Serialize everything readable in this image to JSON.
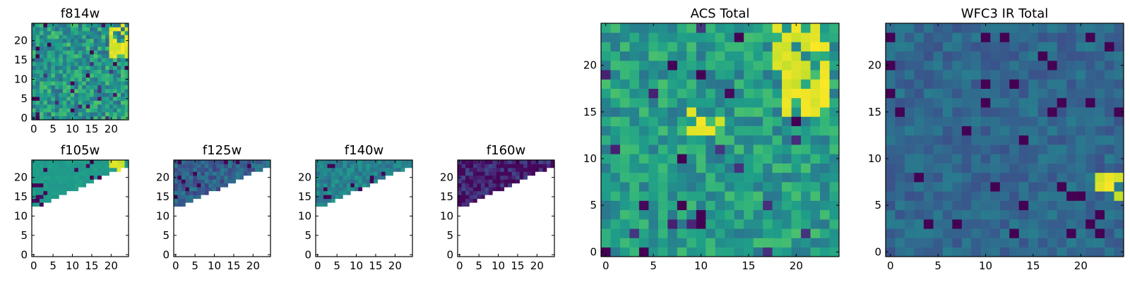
{
  "chart_data": [
    {
      "type": "heatmap",
      "title": "f814w",
      "xticks": [
        0,
        5,
        10,
        15,
        20
      ],
      "yticks": [
        0,
        5,
        10,
        15,
        20
      ],
      "xlim": [
        -0.5,
        24.5
      ],
      "ylim": [
        -0.5,
        24.5
      ],
      "colormap": "viridis",
      "grid": false,
      "coverage": "full"
    },
    {
      "type": "heatmap",
      "title": "f105w",
      "xticks": [
        0,
        5,
        10,
        15,
        20
      ],
      "yticks": [
        0,
        5,
        10,
        15,
        20
      ],
      "xlim": [
        -0.5,
        24.5
      ],
      "ylim": [
        -0.5,
        24.5
      ],
      "colormap": "viridis",
      "grid": false,
      "coverage": "upper-left wedge, rows 13-24"
    },
    {
      "type": "heatmap",
      "title": "f125w",
      "xticks": [
        0,
        5,
        10,
        15,
        20
      ],
      "yticks": [
        0,
        5,
        10,
        15,
        20
      ],
      "xlim": [
        -0.5,
        24.5
      ],
      "ylim": [
        -0.5,
        24.5
      ],
      "colormap": "viridis",
      "grid": false,
      "coverage": "upper-left wedge, rows 14-24"
    },
    {
      "type": "heatmap",
      "title": "f140w",
      "xticks": [
        0,
        5,
        10,
        15,
        20
      ],
      "yticks": [
        0,
        5,
        10,
        15,
        20
      ],
      "xlim": [
        -0.5,
        24.5
      ],
      "ylim": [
        -0.5,
        24.5
      ],
      "colormap": "viridis",
      "grid": false,
      "coverage": "upper-left wedge, rows 14-24"
    },
    {
      "type": "heatmap",
      "title": "f160w",
      "xticks": [
        0,
        5,
        10,
        15,
        20
      ],
      "yticks": [
        0,
        5,
        10,
        15,
        20
      ],
      "xlim": [
        -0.5,
        24.5
      ],
      "ylim": [
        -0.5,
        24.5
      ],
      "colormap": "viridis",
      "grid": false,
      "coverage": "upper-left wedge, rows 14-24"
    },
    {
      "type": "heatmap",
      "title": "ACS Total",
      "xticks": [
        0,
        5,
        10,
        15,
        20
      ],
      "yticks": [
        0,
        5,
        10,
        15,
        20
      ],
      "xlim": [
        -0.5,
        24.5
      ],
      "ylim": [
        -0.5,
        24.5
      ],
      "colormap": "viridis",
      "grid": false,
      "coverage": "full"
    },
    {
      "type": "heatmap",
      "title": "WFC3 IR Total",
      "xticks": [
        0,
        5,
        10,
        15,
        20
      ],
      "yticks": [
        0,
        5,
        10,
        15,
        20
      ],
      "xlim": [
        -0.5,
        24.5
      ],
      "ylim": [
        -0.5,
        24.5
      ],
      "colormap": "viridis",
      "grid": false,
      "coverage": "full"
    }
  ]
}
